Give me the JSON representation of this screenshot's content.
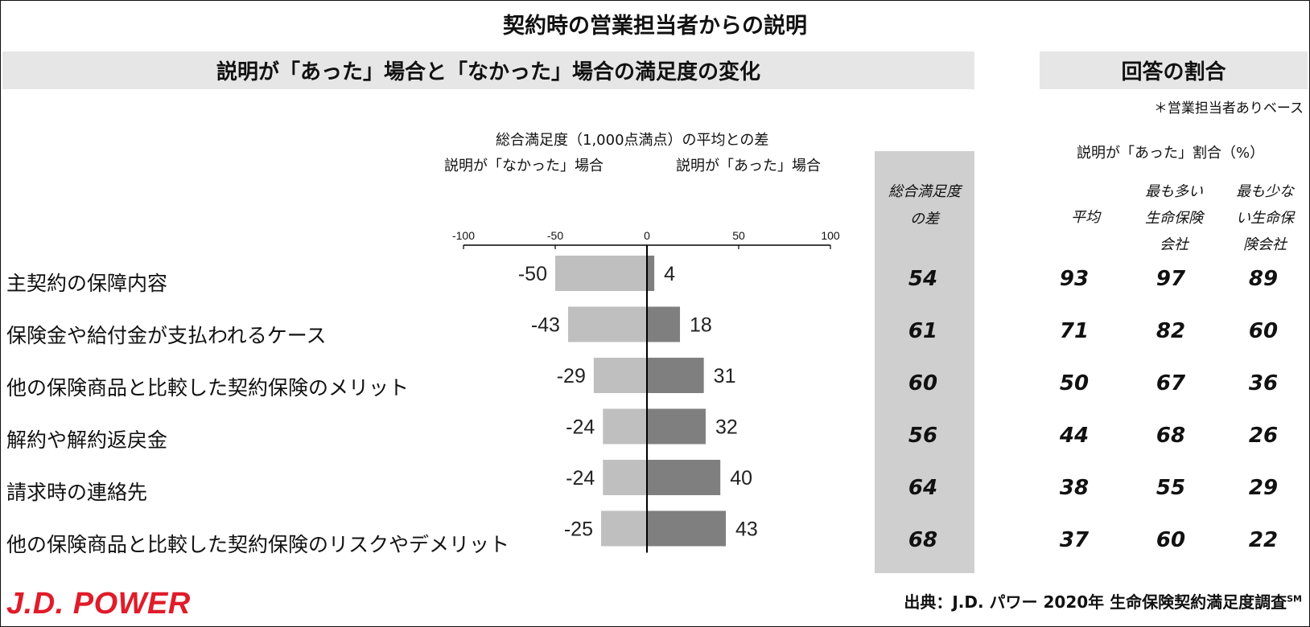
{
  "title": "契約時の営業担当者からの説明",
  "left_header": "説明が「あった」場合と「なかった」場合の満足度の変化",
  "right_header": "回答の割合",
  "base_note": "＊営業担当者ありベース",
  "axis_caption": "総合満足度（1,000点満点）の平均との差",
  "neg_label": "説明が「なかった」場合",
  "pos_label": "説明が「あった」場合",
  "diff_col_line1": "総合満足度",
  "diff_col_line2": "の差",
  "share_caption": "説明が「あった」割合（%）",
  "share_cols": {
    "avg": "平均",
    "most_l1": "最も多い",
    "most_l2": "生命保険",
    "most_l3": "会社",
    "least_l1": "最も少な",
    "least_l2": "い生命保",
    "least_l3": "険会社"
  },
  "chart_data": {
    "type": "bar",
    "orientation": "horizontal",
    "xlim": [
      -100,
      100
    ],
    "xticks": [
      "-100",
      "-50",
      "0",
      "50",
      "100"
    ],
    "categories": [
      "主契約の保障内容",
      "保険金や給付金が支払われるケース",
      "他の保険商品と比較した契約保険のメリット",
      "解約や解約返戻金",
      "請求時の連絡先",
      "他の保険商品と比較した契約保険のリスクやデメリット"
    ],
    "series": [
      {
        "name": "説明が「なかった」場合",
        "values": [
          -50,
          -43,
          -29,
          -24,
          -24,
          -25
        ],
        "color": "#bfbfbf"
      },
      {
        "name": "説明が「あった」場合",
        "values": [
          4,
          18,
          31,
          32,
          40,
          43
        ],
        "color": "#7f7f7f"
      }
    ],
    "labels_neg": [
      "-50",
      "-43",
      "-29",
      "-24",
      "-24",
      "-25"
    ],
    "labels_pos": [
      "4",
      "18",
      "31",
      "32",
      "40",
      "43"
    ],
    "diff": [
      "54",
      "61",
      "60",
      "56",
      "64",
      "68"
    ],
    "share_avg": [
      "93",
      "71",
      "50",
      "44",
      "38",
      "37"
    ],
    "share_most": [
      "97",
      "82",
      "67",
      "68",
      "55",
      "60"
    ],
    "share_least": [
      "89",
      "60",
      "36",
      "26",
      "29",
      "22"
    ]
  },
  "logo": "J.D. POWER",
  "source": "出典：J.D. パワー 2020年 生命保険契約満足度調査",
  "source_mark": "SM"
}
